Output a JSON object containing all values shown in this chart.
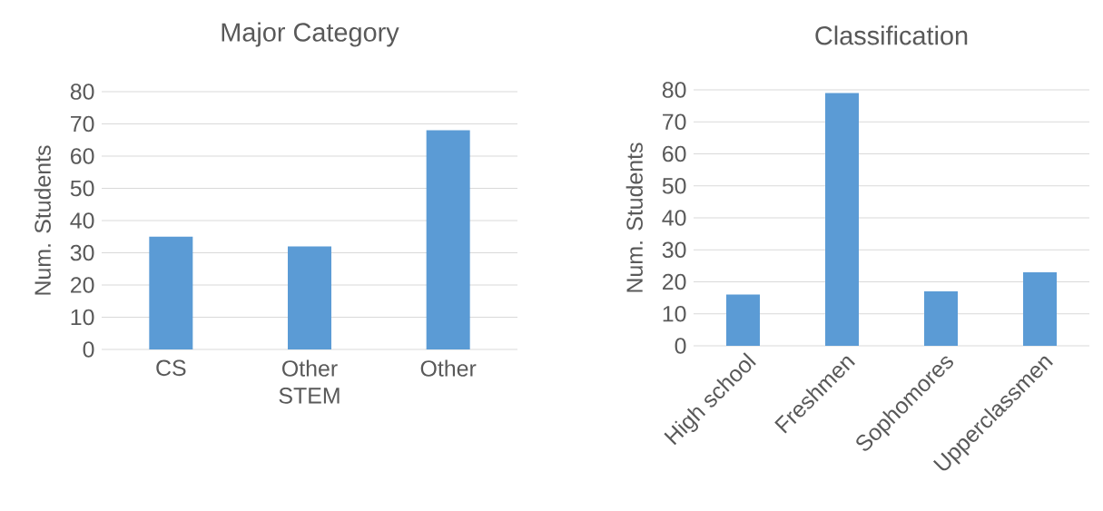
{
  "chart_data": [
    {
      "type": "bar",
      "title": "Major Category",
      "ylabel": "Num. Students",
      "categories": [
        "CS",
        "Other STEM",
        "Other"
      ],
      "values": [
        35,
        32,
        68
      ],
      "color": "#5b9bd5",
      "ylim": [
        0,
        80
      ],
      "yticks": [
        0,
        10,
        20,
        30,
        40,
        50,
        60,
        70,
        80
      ],
      "grid": "y"
    },
    {
      "type": "bar",
      "title": "Classification",
      "ylabel": "Num. Students",
      "categories": [
        "High school",
        "Freshmen",
        "Sophomores",
        "Upperclassmen"
      ],
      "values": [
        16,
        79,
        17,
        23
      ],
      "color": "#5b9bd5",
      "ylim": [
        0,
        80
      ],
      "yticks": [
        0,
        10,
        20,
        30,
        40,
        50,
        60,
        70,
        80
      ],
      "grid": "y"
    }
  ]
}
